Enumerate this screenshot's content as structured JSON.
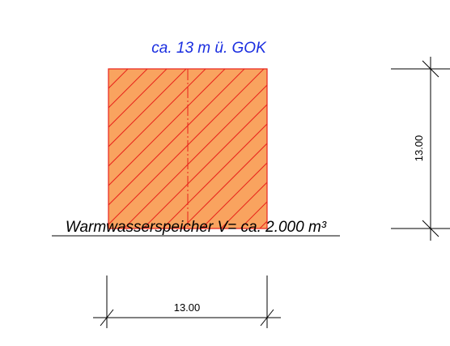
{
  "height_label": "ca. 13 m ü. GOK",
  "tank_label": "Warmwasserspeicher V= ca. 2.000 m³",
  "dimension_width": "13.00",
  "dimension_height": "13.00",
  "colors": {
    "fill": "#f9a35f",
    "hatch": "#e8231b",
    "height_label": "#1a2ee0",
    "line": "#000000"
  }
}
